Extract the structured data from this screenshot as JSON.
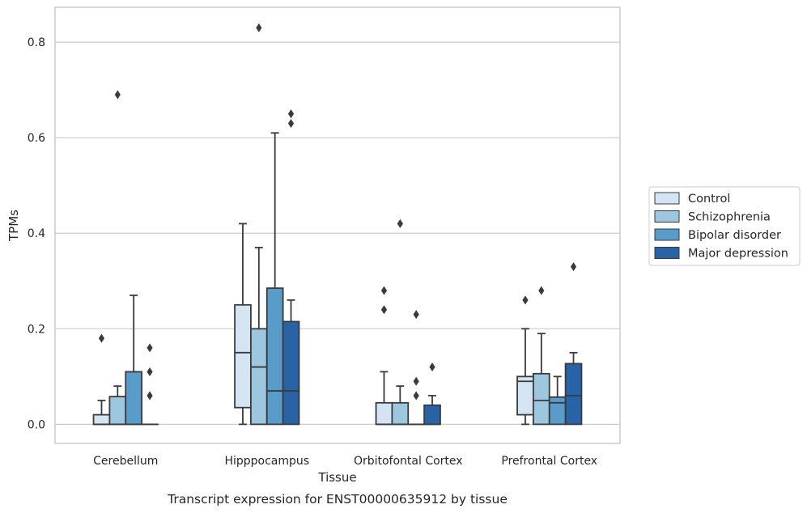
{
  "caption": "Transcript expression for ENST00000635912 by tissue",
  "chart_data": {
    "type": "boxplot",
    "xlabel": "Tissue",
    "ylabel": "TPMs",
    "ylim": [
      -0.04,
      0.873
    ],
    "yticks": [
      0.0,
      0.2,
      0.4,
      0.6,
      0.8
    ],
    "ytick_labels": [
      "0.0",
      "0.2",
      "0.4",
      "0.6",
      "0.8"
    ],
    "grid": "horizontal",
    "legend_position": "right",
    "categories": [
      "Cerebellum",
      "Hipppocampus",
      "Orbitofontal Cortex",
      "Prefrontal Cortex"
    ],
    "series": [
      {
        "name": "Control",
        "color": "#d5e4f3",
        "boxes": [
          {
            "q1": 0.0,
            "median": 0.0,
            "q3": 0.02,
            "whislo": 0.0,
            "whishi": 0.05,
            "fliers": [
              0.18
            ]
          },
          {
            "q1": 0.035,
            "median": 0.15,
            "q3": 0.25,
            "whislo": 0.0,
            "whishi": 0.42,
            "fliers": []
          },
          {
            "q1": 0.0,
            "median": 0.0,
            "q3": 0.045,
            "whislo": 0.0,
            "whishi": 0.11,
            "fliers": [
              0.24,
              0.28
            ]
          },
          {
            "q1": 0.02,
            "median": 0.09,
            "q3": 0.1,
            "whislo": 0.0,
            "whishi": 0.2,
            "fliers": [
              0.26
            ]
          }
        ]
      },
      {
        "name": "Schizophrenia",
        "color": "#9cc7de",
        "boxes": [
          {
            "q1": 0.0,
            "median": 0.0,
            "q3": 0.058,
            "whislo": 0.0,
            "whishi": 0.08,
            "fliers": [
              0.69
            ]
          },
          {
            "q1": 0.0,
            "median": 0.12,
            "q3": 0.2,
            "whislo": 0.0,
            "whishi": 0.37,
            "fliers": [
              0.83
            ]
          },
          {
            "q1": 0.0,
            "median": 0.0,
            "q3": 0.045,
            "whislo": 0.0,
            "whishi": 0.08,
            "fliers": [
              0.42
            ]
          },
          {
            "q1": 0.0,
            "median": 0.05,
            "q3": 0.106,
            "whislo": 0.0,
            "whishi": 0.19,
            "fliers": [
              0.28
            ]
          }
        ]
      },
      {
        "name": "Bipolar disorder",
        "color": "#5a9cc9",
        "boxes": [
          {
            "q1": 0.0,
            "median": 0.0,
            "q3": 0.11,
            "whislo": 0.0,
            "whishi": 0.27,
            "fliers": []
          },
          {
            "q1": 0.0,
            "median": 0.07,
            "q3": 0.285,
            "whislo": 0.0,
            "whishi": 0.61,
            "fliers": []
          },
          {
            "q1": 0.0,
            "median": 0.0,
            "q3": 0.0,
            "whislo": 0.0,
            "whishi": 0.0,
            "fliers": [
              0.06,
              0.09,
              0.23
            ]
          },
          {
            "q1": 0.0,
            "median": 0.045,
            "q3": 0.057,
            "whislo": 0.0,
            "whishi": 0.1,
            "fliers": []
          }
        ]
      },
      {
        "name": "Major depression",
        "color": "#2763a6",
        "boxes": [
          {
            "q1": 0.0,
            "median": 0.0,
            "q3": 0.0,
            "whislo": 0.0,
            "whishi": 0.0,
            "fliers": [
              0.06,
              0.11,
              0.16
            ]
          },
          {
            "q1": 0.0,
            "median": 0.07,
            "q3": 0.215,
            "whislo": 0.0,
            "whishi": 0.26,
            "fliers": [
              0.63,
              0.65
            ]
          },
          {
            "q1": 0.0,
            "median": 0.0,
            "q3": 0.04,
            "whislo": 0.0,
            "whishi": 0.06,
            "fliers": [
              0.12
            ]
          },
          {
            "q1": 0.0,
            "median": 0.06,
            "q3": 0.127,
            "whislo": 0.0,
            "whishi": 0.15,
            "fliers": [
              0.33
            ]
          }
        ]
      }
    ]
  }
}
